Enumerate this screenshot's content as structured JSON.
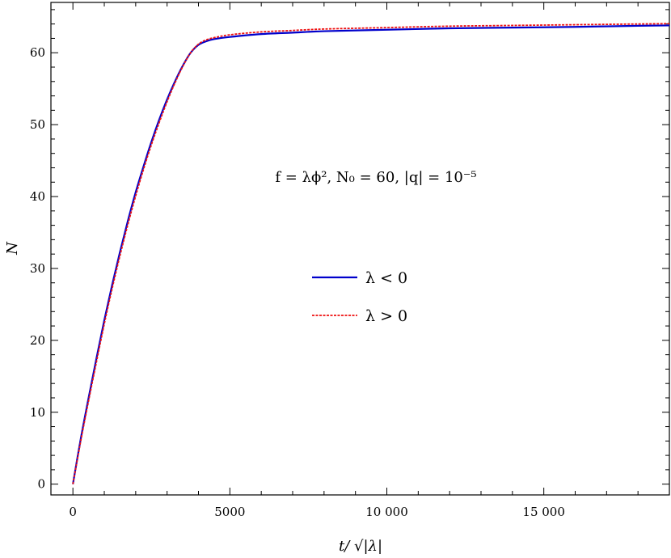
{
  "chart_data": {
    "type": "line",
    "xlabel": "t/ √|λ|",
    "ylabel": "N",
    "xlim": [
      -700,
      19000
    ],
    "ylim": [
      -1.5,
      67
    ],
    "xticks": [
      0,
      5000,
      10000,
      15000
    ],
    "xtick_labels": [
      "0",
      "5000",
      "10 000",
      "15 000"
    ],
    "yticks": [
      0,
      10,
      20,
      30,
      40,
      50,
      60
    ],
    "ytick_labels": [
      "0",
      "10",
      "20",
      "30",
      "40",
      "50",
      "60"
    ],
    "annotation": "f = λϕ², N₀ = 60, |q| = 10⁻⁵",
    "legend_position": "center",
    "grid": false,
    "series": [
      {
        "name": "λ < 0",
        "color": "#0000cc",
        "style": "solid",
        "x": [
          0,
          250,
          500,
          750,
          1000,
          1250,
          1500,
          1750,
          2000,
          2250,
          2500,
          2750,
          3000,
          3250,
          3500,
          3750,
          4000,
          4250,
          4500,
          5000,
          6000,
          7000,
          8000,
          10000,
          12000,
          14000,
          16000,
          18000,
          19000
        ],
        "y": [
          0,
          6.3,
          12.0,
          17.5,
          22.8,
          27.7,
          32.3,
          36.6,
          40.6,
          44.2,
          47.6,
          50.7,
          53.5,
          56.0,
          58.2,
          60.0,
          61.1,
          61.6,
          61.9,
          62.2,
          62.6,
          62.8,
          63.0,
          63.2,
          63.4,
          63.5,
          63.6,
          63.75,
          63.8
        ]
      },
      {
        "name": "λ > 0",
        "color": "#ee1111",
        "style": "dashed",
        "x": [
          0,
          250,
          500,
          750,
          1000,
          1250,
          1500,
          1750,
          2000,
          2250,
          2500,
          2750,
          3000,
          3250,
          3500,
          3750,
          4000,
          4250,
          4500,
          5000,
          6000,
          7000,
          8000,
          10000,
          12000,
          14000,
          16000,
          18000,
          19000
        ],
        "y": [
          0,
          6.0,
          11.6,
          17.0,
          22.3,
          27.2,
          31.8,
          36.1,
          40.1,
          43.8,
          47.2,
          50.3,
          53.2,
          55.8,
          58.1,
          60.0,
          61.2,
          61.8,
          62.1,
          62.5,
          62.9,
          63.1,
          63.3,
          63.5,
          63.7,
          63.8,
          63.9,
          64.0,
          64.05
        ]
      }
    ]
  }
}
